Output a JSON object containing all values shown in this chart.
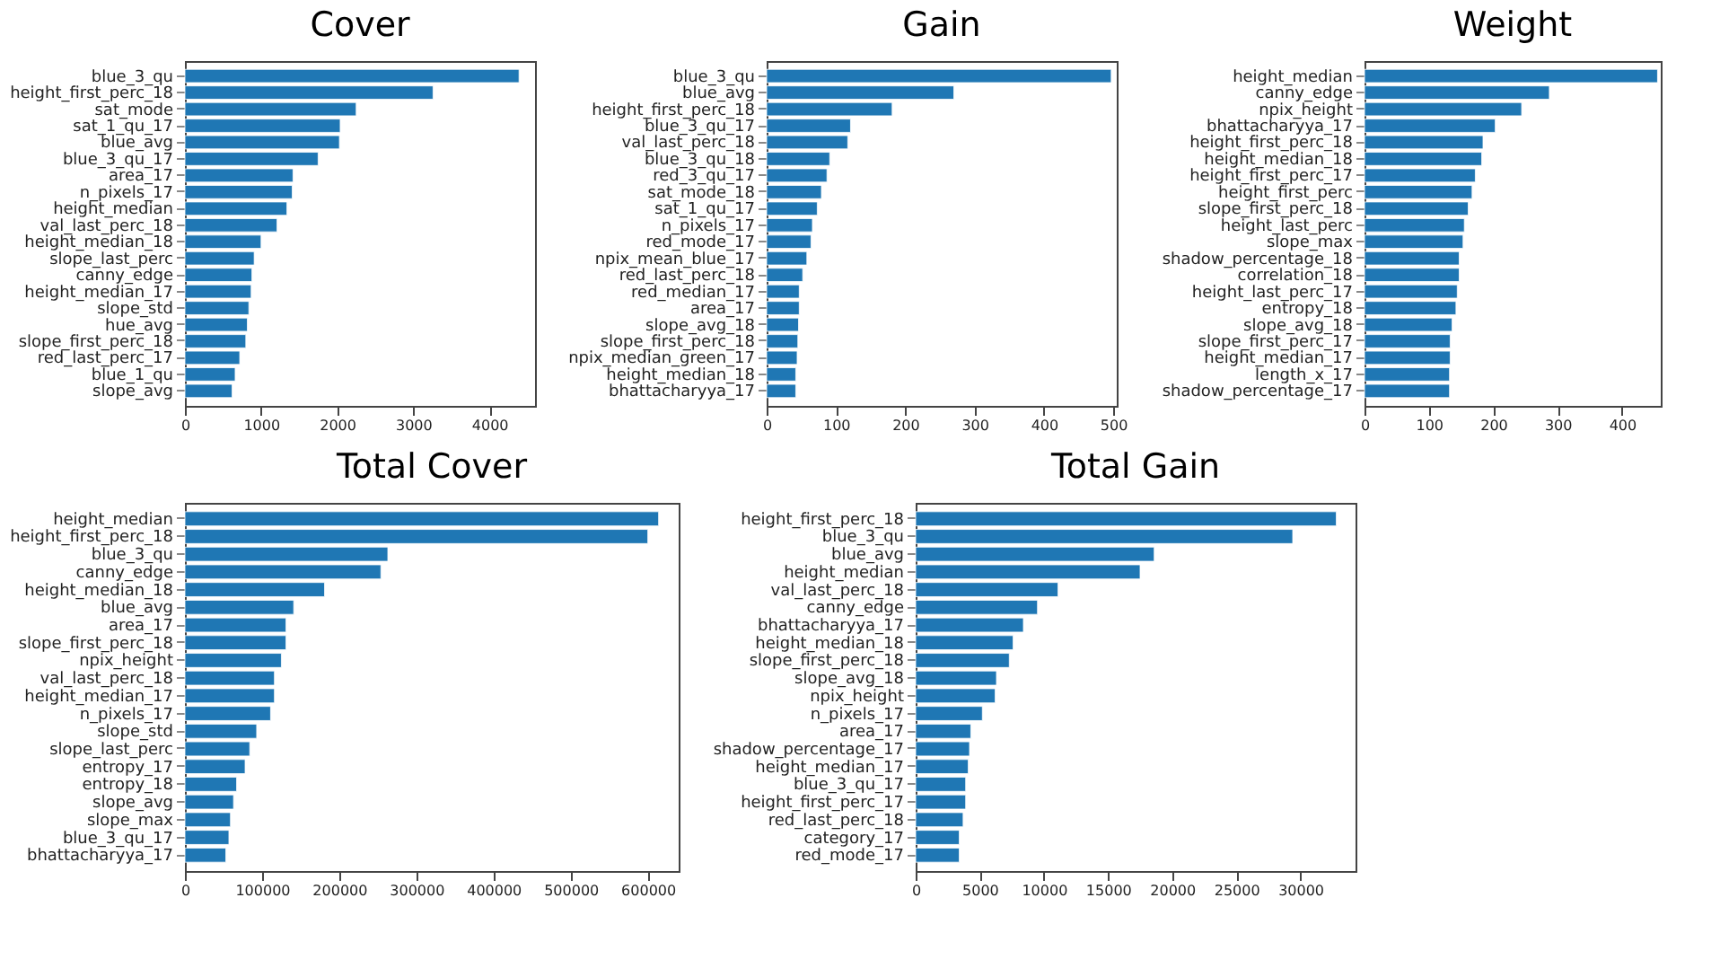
{
  "chart_data": [
    {
      "type": "bar",
      "orientation": "horizontal",
      "title": "Cover",
      "color": "#1f77b4",
      "grid": false,
      "xlim": [
        0,
        4600
      ],
      "xticks": [
        0,
        1000,
        2000,
        3000,
        4000
      ],
      "categories": [
        "blue_3_qu",
        "height_first_perc_18",
        "sat_mode",
        "sat_1_qu_17",
        "blue_avg",
        "blue_3_qu_17",
        "area_17",
        "n_pixels_17",
        "height_median",
        "val_last_perc_18",
        "height_median_18",
        "slope_last_perc",
        "canny_edge",
        "height_median_17",
        "slope_std",
        "hue_avg",
        "slope_first_perc_18",
        "red_last_perc_17",
        "blue_1_qu",
        "slope_avg"
      ],
      "values": [
        4390,
        3260,
        2250,
        2040,
        2030,
        1750,
        1420,
        1410,
        1340,
        1210,
        1000,
        910,
        880,
        870,
        840,
        820,
        800,
        720,
        660,
        620
      ]
    },
    {
      "type": "bar",
      "orientation": "horizontal",
      "title": "Gain",
      "color": "#1f77b4",
      "grid": false,
      "xlim": [
        0,
        505
      ],
      "xticks": [
        0,
        100,
        200,
        300,
        400,
        500
      ],
      "categories": [
        "blue_3_qu",
        "blue_avg",
        "height_first_perc_18",
        "blue_3_qu_17",
        "val_last_perc_18",
        "blue_3_qu_18",
        "red_3_qu_17",
        "sat_mode_18",
        "sat_1_qu_17",
        "n_pixels_17",
        "red_mode_17",
        "npix_mean_blue_17",
        "red_last_perc_18",
        "red_median_17",
        "area_17",
        "slope_avg_18",
        "slope_first_perc_18",
        "npix_median_green_17",
        "height_median_18",
        "bhattacharyya_17"
      ],
      "values": [
        497,
        270,
        181,
        121,
        117,
        91,
        87,
        79,
        73,
        66,
        64,
        58,
        52,
        47,
        47,
        46,
        45,
        44,
        42,
        42
      ]
    },
    {
      "type": "bar",
      "orientation": "horizontal",
      "title": "Weight",
      "color": "#1f77b4",
      "grid": false,
      "xlim": [
        0,
        460
      ],
      "xticks": [
        0,
        100,
        200,
        300,
        400
      ],
      "categories": [
        "height_median",
        "canny_edge",
        "npix_height",
        "bhattacharyya_17",
        "height_first_perc_18",
        "height_median_18",
        "height_first_perc_17",
        "height_first_perc",
        "slope_first_perc_18",
        "height_last_perc",
        "slope_max",
        "shadow_percentage_18",
        "correlation_18",
        "height_last_perc_17",
        "entropy_18",
        "slope_avg_18",
        "slope_first_perc_17",
        "height_median_17",
        "length_x_17",
        "shadow_percentage_17"
      ],
      "values": [
        455,
        287,
        244,
        203,
        184,
        182,
        172,
        167,
        161,
        155,
        153,
        147,
        147,
        144,
        142,
        136,
        133,
        133,
        132,
        132
      ]
    },
    {
      "type": "bar",
      "orientation": "horizontal",
      "title": "Total Cover",
      "color": "#1f77b4",
      "grid": false,
      "xlim": [
        0,
        640000
      ],
      "xticks": [
        0,
        100000,
        200000,
        300000,
        400000,
        500000,
        600000
      ],
      "categories": [
        "height_median",
        "height_first_perc_18",
        "blue_3_qu",
        "canny_edge",
        "height_median_18",
        "blue_avg",
        "area_17",
        "slope_first_perc_18",
        "npix_height",
        "val_last_perc_18",
        "height_median_17",
        "n_pixels_17",
        "slope_std",
        "slope_last_perc",
        "entropy_17",
        "entropy_18",
        "slope_avg",
        "slope_max",
        "blue_3_qu_17",
        "bhattacharyya_17"
      ],
      "values": [
        614000,
        600000,
        263000,
        254000,
        181000,
        141000,
        131000,
        131000,
        125000,
        116000,
        116000,
        111000,
        93000,
        84000,
        78000,
        67000,
        63000,
        59000,
        57000,
        53000
      ]
    },
    {
      "type": "bar",
      "orientation": "horizontal",
      "title": "Total Gain",
      "color": "#1f77b4",
      "grid": false,
      "xlim": [
        0,
        34300
      ],
      "xticks": [
        0,
        5000,
        10000,
        15000,
        20000,
        25000,
        30000
      ],
      "categories": [
        "height_first_perc_18",
        "blue_3_qu",
        "blue_avg",
        "height_median",
        "val_last_perc_18",
        "canny_edge",
        "bhattacharyya_17",
        "height_median_18",
        "slope_first_perc_18",
        "slope_avg_18",
        "npix_height",
        "n_pixels_17",
        "area_17",
        "shadow_percentage_17",
        "height_median_17",
        "blue_3_qu_17",
        "height_first_perc_17",
        "red_last_perc_18",
        "category_17",
        "red_mode_17"
      ],
      "values": [
        32800,
        29400,
        18600,
        17500,
        11100,
        9500,
        8400,
        7600,
        7300,
        6300,
        6200,
        5200,
        4300,
        4200,
        4100,
        3900,
        3900,
        3700,
        3400,
        3400
      ]
    }
  ]
}
